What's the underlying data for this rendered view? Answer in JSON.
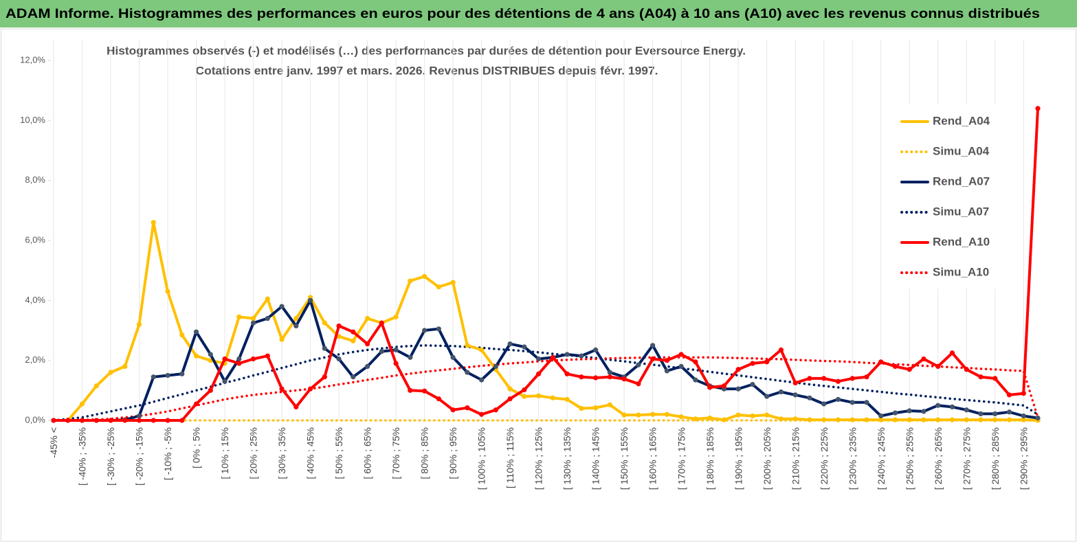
{
  "page_title": "ADAM Informe. Histogrammes des performances en euros pour des détentions de 4 ans (A04) à 10 ans (A10) avec les revenus connus distribués",
  "chart_data": {
    "type": "line",
    "title": "Histogrammes observés (-) et modélisés (…) des performances par durées de détention pour Eversource Energy.",
    "subtitle": "Cotations entre janv. 1997 et mars. 2026. Revenus DISTRIBUES depuis févr. 1997.",
    "categories": [
      "-45% <",
      null,
      "[ -40% ; -35%",
      null,
      "[ -30% ; -25%",
      null,
      "[ -20% ; -15%",
      null,
      "[ -10% ; -5%",
      null,
      "[ 0% ; 5%",
      null,
      "[ 10% ; 15%",
      null,
      "[ 20% ; 25%",
      null,
      "[ 30% ; 35%",
      null,
      "[ 40% ; 45%",
      null,
      "[ 50% ; 55%",
      null,
      "[ 60% ; 65%",
      null,
      "[ 70% ; 75%",
      null,
      "[ 80% ; 85%",
      null,
      "[ 90% ; 95%",
      null,
      "[ 100% ; 105%",
      null,
      "[ 110% ; 115%",
      null,
      "[ 120% ; 125%",
      null,
      "[ 130% ; 135%",
      null,
      "[ 140% ; 145%",
      null,
      "[ 150% ; 155%",
      null,
      "[ 160% ; 165%",
      null,
      "[ 170% ; 175%",
      null,
      "[ 180% ; 185%",
      null,
      "[ 190% ; 195%",
      null,
      "[ 200% ; 205%",
      null,
      "[ 210% ; 215%",
      null,
      "[ 220% ; 225%",
      null,
      "[ 230% ; 235%",
      null,
      "[ 240% ; 245%",
      null,
      "[ 250% ; 255%",
      null,
      "[ 260% ; 265%",
      null,
      "[ 270% ; 275%",
      null,
      "[ 280% ; 285%",
      null,
      "[ 290% ; 295%",
      null
    ],
    "series": [
      {
        "name": "Rend_A04",
        "color": "#ffc000",
        "line_style": "solid",
        "marker": true,
        "values": [
          0,
          0,
          0.55,
          1.15,
          1.6,
          1.8,
          3.2,
          6.6,
          4.3,
          2.85,
          2.15,
          2.0,
          1.9,
          3.45,
          3.4,
          4.05,
          2.7,
          3.4,
          4.1,
          3.25,
          2.8,
          2.65,
          3.4,
          3.25,
          3.45,
          4.65,
          4.8,
          4.45,
          4.6,
          2.5,
          2.35,
          1.7,
          1.05,
          0.8,
          0.82,
          0.75,
          0.7,
          0.4,
          0.42,
          0.52,
          0.18,
          0.18,
          0.2,
          0.2,
          0.12,
          0.05,
          0.08,
          0.02,
          0.18,
          0.15,
          0.18,
          0.05,
          0.05,
          0.02,
          0.02,
          0.02,
          0.02,
          0.02,
          0.02,
          0.02,
          0.02,
          0.02,
          0.02,
          0.02,
          0.02,
          0.02,
          0.02,
          0.02,
          0.02,
          0
        ]
      },
      {
        "name": "Simu_A04",
        "color": "#ffc000",
        "line_style": "dotted",
        "marker": false,
        "values": [
          0,
          0,
          0,
          0,
          0,
          0,
          0,
          0,
          0,
          0,
          0,
          0,
          0,
          0,
          0,
          0,
          0,
          0,
          0,
          0,
          0,
          0,
          0,
          0,
          0,
          0,
          0,
          0,
          0,
          0,
          0,
          0,
          0,
          0,
          0,
          0,
          0,
          0,
          0,
          0,
          0,
          0,
          0,
          0,
          0,
          0,
          0,
          0,
          0,
          0,
          0,
          0,
          0,
          0,
          0,
          0,
          0,
          0,
          0,
          0,
          0,
          0,
          0,
          0,
          0,
          0,
          0,
          0,
          0,
          0
        ]
      },
      {
        "name": "Rend_A07",
        "color": "#002060",
        "line_style": "solid",
        "marker": true,
        "values": [
          0,
          0,
          0,
          0,
          0,
          0.02,
          0.15,
          1.45,
          1.5,
          1.55,
          2.95,
          2.2,
          1.3,
          2.05,
          3.25,
          3.4,
          3.8,
          3.15,
          4.0,
          2.4,
          2.05,
          1.45,
          1.8,
          2.3,
          2.35,
          2.1,
          3.0,
          3.05,
          2.1,
          1.6,
          1.35,
          1.8,
          2.55,
          2.45,
          2.05,
          2.1,
          2.2,
          2.15,
          2.35,
          1.6,
          1.45,
          1.85,
          2.5,
          1.65,
          1.8,
          1.35,
          1.15,
          1.05,
          1.05,
          1.2,
          0.8,
          0.95,
          0.85,
          0.75,
          0.55,
          0.7,
          0.6,
          0.6,
          0.15,
          0.25,
          0.32,
          0.3,
          0.5,
          0.45,
          0.35,
          0.22,
          0.22,
          0.28,
          0.15,
          0.08
        ]
      },
      {
        "name": "Simu_A07",
        "color": "#002060",
        "line_style": "dotted",
        "marker": false,
        "values": [
          0,
          0.05,
          0.1,
          0.2,
          0.3,
          0.4,
          0.5,
          0.62,
          0.75,
          0.87,
          1.0,
          1.12,
          1.25,
          1.37,
          1.5,
          1.62,
          1.75,
          1.87,
          2.0,
          2.1,
          2.2,
          2.28,
          2.35,
          2.4,
          2.45,
          2.48,
          2.5,
          2.49,
          2.48,
          2.45,
          2.42,
          2.38,
          2.35,
          2.31,
          2.27,
          2.22,
          2.18,
          2.13,
          2.08,
          2.02,
          1.97,
          1.91,
          1.86,
          1.8,
          1.74,
          1.68,
          1.62,
          1.56,
          1.5,
          1.44,
          1.38,
          1.32,
          1.26,
          1.2,
          1.15,
          1.1,
          1.05,
          1.0,
          0.95,
          0.9,
          0.86,
          0.81,
          0.77,
          0.72,
          0.68,
          0.64,
          0.6,
          0.55,
          0.5,
          0.2
        ]
      },
      {
        "name": "Rend_A10",
        "color": "#ff0000",
        "line_style": "solid",
        "marker": true,
        "values": [
          0,
          0,
          0,
          0,
          0,
          0,
          0,
          0,
          0,
          0,
          0.55,
          1.0,
          2.05,
          1.9,
          2.05,
          2.15,
          1.05,
          0.45,
          1.05,
          1.45,
          3.15,
          2.95,
          2.55,
          3.25,
          1.9,
          1.0,
          0.98,
          0.72,
          0.35,
          0.42,
          0.2,
          0.35,
          0.72,
          1.02,
          1.55,
          2.1,
          1.55,
          1.45,
          1.42,
          1.45,
          1.38,
          1.22,
          2.05,
          2.0,
          2.2,
          1.95,
          1.1,
          1.15,
          1.7,
          1.9,
          1.95,
          2.35,
          1.25,
          1.4,
          1.4,
          1.3,
          1.4,
          1.45,
          1.95,
          1.8,
          1.7,
          2.05,
          1.8,
          2.25,
          1.7,
          1.45,
          1.4,
          0.85,
          0.9,
          10.4
        ]
      },
      {
        "name": "Simu_A10",
        "color": "#ff0000",
        "line_style": "dotted",
        "marker": false,
        "values": [
          0,
          0,
          0.02,
          0.03,
          0.05,
          0.1,
          0.15,
          0.22,
          0.3,
          0.4,
          0.5,
          0.6,
          0.7,
          0.78,
          0.85,
          0.9,
          0.95,
          1.0,
          1.05,
          1.12,
          1.2,
          1.27,
          1.35,
          1.42,
          1.5,
          1.56,
          1.62,
          1.67,
          1.72,
          1.77,
          1.82,
          1.86,
          1.9,
          1.93,
          1.97,
          2.0,
          2.02,
          2.04,
          2.05,
          2.07,
          2.08,
          2.09,
          2.1,
          2.1,
          2.1,
          2.1,
          2.1,
          2.09,
          2.08,
          2.07,
          2.05,
          2.04,
          2.02,
          2.0,
          1.98,
          1.97,
          1.95,
          1.92,
          1.9,
          1.87,
          1.85,
          1.82,
          1.8,
          1.77,
          1.75,
          1.72,
          1.7,
          1.67,
          1.65,
          0.1
        ]
      }
    ],
    "ylim": [
      0,
      12
    ],
    "yticks": [
      {
        "value": 0,
        "label": "0,0%"
      },
      {
        "value": 2,
        "label": "2,0%"
      },
      {
        "value": 4,
        "label": "4,0%"
      },
      {
        "value": 6,
        "label": "6,0%"
      },
      {
        "value": 8,
        "label": "8,0%"
      },
      {
        "value": 10,
        "label": "10,0%"
      },
      {
        "value": 12,
        "label": "12,0%"
      }
    ],
    "legend": "right"
  }
}
